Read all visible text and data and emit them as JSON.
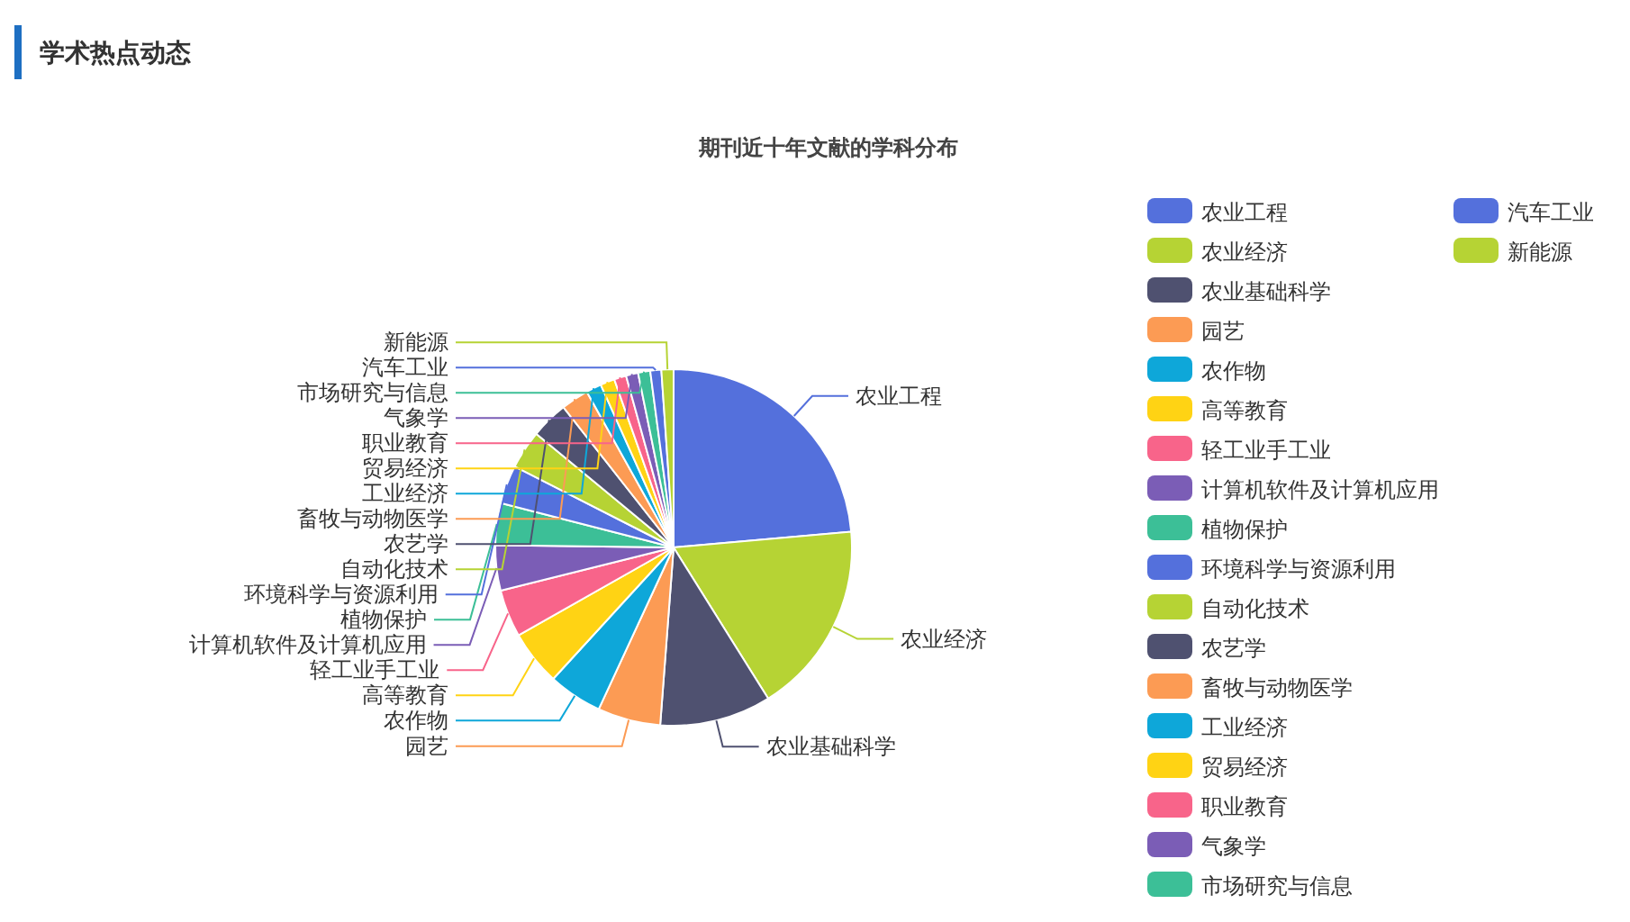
{
  "chart_data": {
    "type": "pie",
    "title": "期刊近十年文献的学科分布",
    "annotations": [
      "学术热点动态"
    ],
    "legend": "right",
    "categories": [
      "农业工程",
      "农业经济",
      "农业基础科学",
      "园艺",
      "农作物",
      "高等教育",
      "轻工业手工业",
      "计算机软件及计算机应用",
      "植物保护",
      "环境科学与资源利用",
      "自动化技术",
      "农艺学",
      "畜牧与动物医学",
      "工业经济",
      "贸易经济",
      "职业教育",
      "气象学",
      "市场研究与信息",
      "汽车工业",
      "新能源"
    ],
    "values": [
      23.6,
      17.5,
      10.1,
      5.7,
      4.9,
      5.0,
      4.3,
      4.1,
      3.8,
      3.5,
      3.5,
      3.4,
      2.5,
      1.4,
      1.3,
      1.1,
      1.1,
      1.1,
      1.0,
      1.1
    ],
    "colors": [
      "#5470dc",
      "#b6d334",
      "#4f5170",
      "#fc9b54",
      "#0ea7d9",
      "#ffd314",
      "#f8648a",
      "#7b5db6",
      "#3cbf97",
      "#5470dc",
      "#b6d334",
      "#4f5170",
      "#fc9b54",
      "#0ea7d9",
      "#ffd314",
      "#f8648a",
      "#7b5db6",
      "#3cbf97",
      "#5470dc",
      "#b6d334"
    ]
  }
}
